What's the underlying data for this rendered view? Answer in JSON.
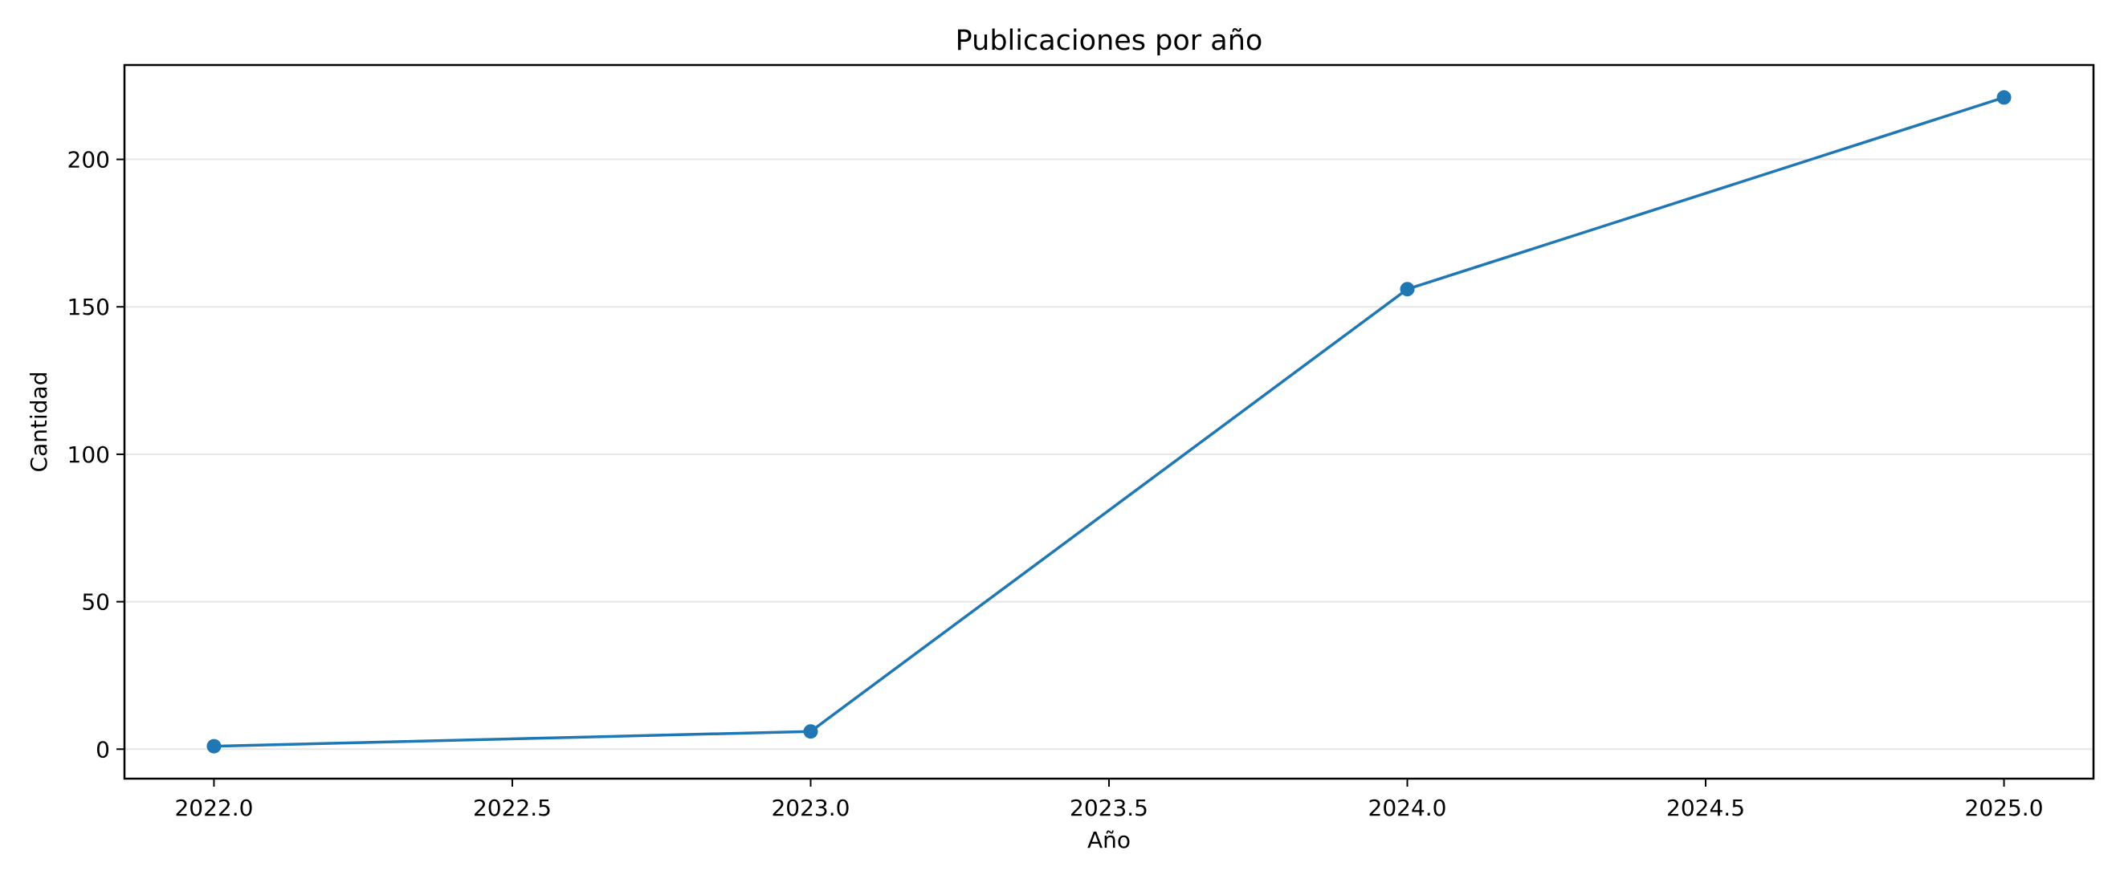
{
  "chart_data": {
    "type": "line",
    "title": "Publicaciones por año",
    "xlabel": "Año",
    "ylabel": "Cantidad",
    "xlim": [
      2021.85,
      2025.15
    ],
    "ylim": [
      -10,
      232
    ],
    "xticks": [
      "2022.0",
      "2022.5",
      "2023.0",
      "2023.5",
      "2024.0",
      "2024.5",
      "2025.0"
    ],
    "yticks": [
      "0",
      "50",
      "100",
      "150",
      "200"
    ],
    "grid": "y-axis only",
    "series": [
      {
        "x": [
          2022,
          2023,
          2024,
          2025
        ],
        "y": [
          1,
          6,
          156,
          221
        ],
        "color": "#1f77b4",
        "marker": "circle"
      }
    ]
  }
}
